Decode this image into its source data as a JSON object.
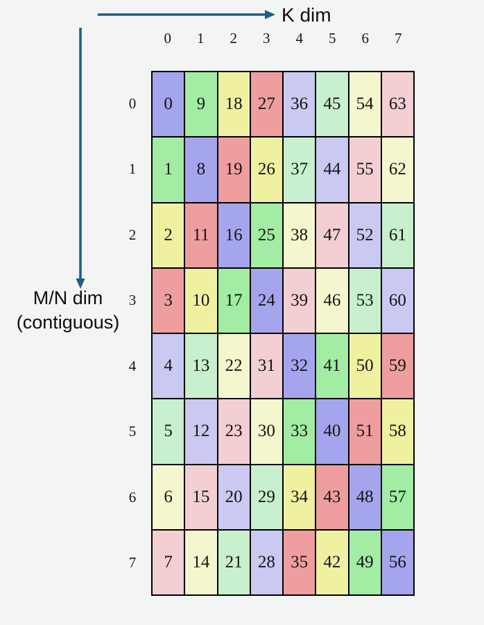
{
  "axes": {
    "k_label": "K dim",
    "mn_label_line1": "M/N dim",
    "mn_label_line2": "(contiguous)"
  },
  "grid": {
    "col_headers": [
      "0",
      "1",
      "2",
      "3",
      "4",
      "5",
      "6",
      "7"
    ],
    "row_headers": [
      "0",
      "1",
      "2",
      "3",
      "4",
      "5",
      "6",
      "7"
    ],
    "rows": [
      [
        {
          "value": "0",
          "color": "blue"
        },
        {
          "value": "9",
          "color": "green"
        },
        {
          "value": "18",
          "color": "yellow"
        },
        {
          "value": "27",
          "color": "red"
        },
        {
          "value": "36",
          "color": "blue_light"
        },
        {
          "value": "45",
          "color": "green_light"
        },
        {
          "value": "54",
          "color": "yellow_light"
        },
        {
          "value": "63",
          "color": "red_light"
        }
      ],
      [
        {
          "value": "1",
          "color": "green"
        },
        {
          "value": "8",
          "color": "blue"
        },
        {
          "value": "19",
          "color": "red"
        },
        {
          "value": "26",
          "color": "yellow"
        },
        {
          "value": "37",
          "color": "green_light"
        },
        {
          "value": "44",
          "color": "blue_light"
        },
        {
          "value": "55",
          "color": "red_light"
        },
        {
          "value": "62",
          "color": "yellow_light"
        }
      ],
      [
        {
          "value": "2",
          "color": "yellow"
        },
        {
          "value": "11",
          "color": "red"
        },
        {
          "value": "16",
          "color": "blue"
        },
        {
          "value": "25",
          "color": "green"
        },
        {
          "value": "38",
          "color": "yellow_light"
        },
        {
          "value": "47",
          "color": "red_light"
        },
        {
          "value": "52",
          "color": "blue_light"
        },
        {
          "value": "61",
          "color": "green_light"
        }
      ],
      [
        {
          "value": "3",
          "color": "red"
        },
        {
          "value": "10",
          "color": "yellow"
        },
        {
          "value": "17",
          "color": "green"
        },
        {
          "value": "24",
          "color": "blue"
        },
        {
          "value": "39",
          "color": "red_light"
        },
        {
          "value": "46",
          "color": "yellow_light"
        },
        {
          "value": "53",
          "color": "green_light"
        },
        {
          "value": "60",
          "color": "blue_light"
        }
      ],
      [
        {
          "value": "4",
          "color": "blue_light"
        },
        {
          "value": "13",
          "color": "green_light"
        },
        {
          "value": "22",
          "color": "yellow_light"
        },
        {
          "value": "31",
          "color": "red_light"
        },
        {
          "value": "32",
          "color": "blue"
        },
        {
          "value": "41",
          "color": "green"
        },
        {
          "value": "50",
          "color": "yellow"
        },
        {
          "value": "59",
          "color": "red"
        }
      ],
      [
        {
          "value": "5",
          "color": "green_light"
        },
        {
          "value": "12",
          "color": "blue_light"
        },
        {
          "value": "23",
          "color": "red_light"
        },
        {
          "value": "30",
          "color": "yellow_light"
        },
        {
          "value": "33",
          "color": "green"
        },
        {
          "value": "40",
          "color": "blue"
        },
        {
          "value": "51",
          "color": "red"
        },
        {
          "value": "58",
          "color": "yellow"
        }
      ],
      [
        {
          "value": "6",
          "color": "yellow_light"
        },
        {
          "value": "15",
          "color": "red_light"
        },
        {
          "value": "20",
          "color": "blue_light"
        },
        {
          "value": "29",
          "color": "green_light"
        },
        {
          "value": "34",
          "color": "yellow"
        },
        {
          "value": "43",
          "color": "red"
        },
        {
          "value": "48",
          "color": "blue"
        },
        {
          "value": "57",
          "color": "green"
        }
      ],
      [
        {
          "value": "7",
          "color": "red_light"
        },
        {
          "value": "14",
          "color": "yellow_light"
        },
        {
          "value": "21",
          "color": "green_light"
        },
        {
          "value": "28",
          "color": "blue_light"
        },
        {
          "value": "35",
          "color": "red"
        },
        {
          "value": "42",
          "color": "yellow"
        },
        {
          "value": "49",
          "color": "green"
        },
        {
          "value": "56",
          "color": "blue"
        }
      ]
    ]
  },
  "palette": {
    "blue": "#a5a5ed",
    "green": "#a2eca4",
    "yellow": "#eff1a1",
    "red": "#ee9e9e",
    "blue_light": "#c9c9f1",
    "green_light": "#c8efce",
    "yellow_light": "#f4f6ce",
    "red_light": "#f3ced2"
  },
  "colors": {
    "arrow": "#1e5f80",
    "background": "#f3f5f4",
    "cell_border": "#000000",
    "text": "#141414"
  }
}
